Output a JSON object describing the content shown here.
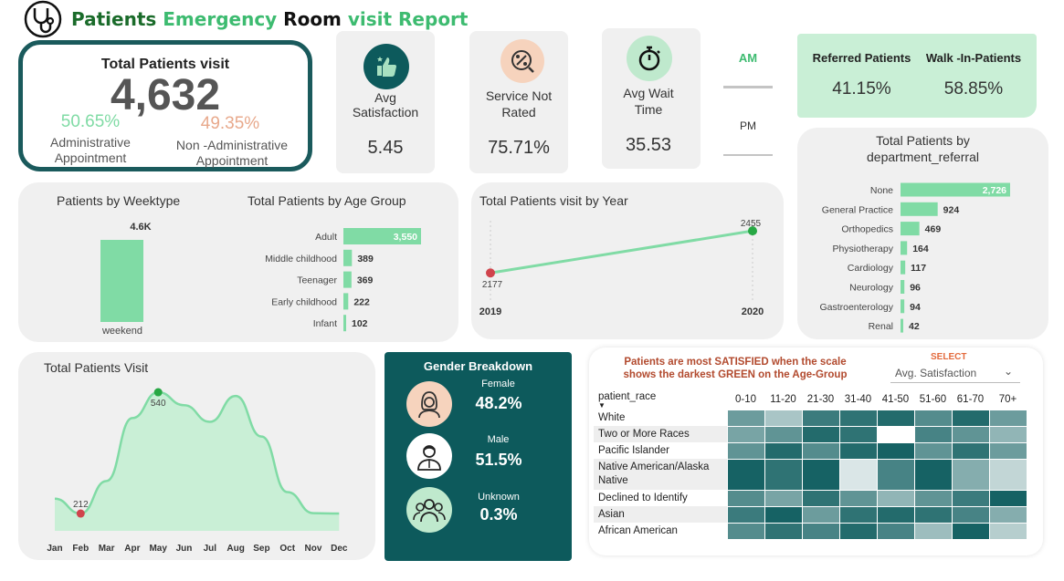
{
  "header": {
    "title_part1": "Patients ",
    "title_part2": "Emergency ",
    "title_part3": "Room ",
    "title_part4": "visit Report"
  },
  "total_visits": {
    "title": "Total Patients visit",
    "value": "4,632",
    "admin_pct": "50.65%",
    "admin_label_1": "Administrative",
    "admin_label_2": "Appointment",
    "non_admin_pct": "49.35%",
    "non_admin_label_1": "Non -Administrative",
    "non_admin_label_2": "Appointment"
  },
  "kpis": {
    "satisfaction": {
      "label_1": "Avg",
      "label_2": "Satisfaction",
      "value": "5.45",
      "icon": "thumbs-up-icon"
    },
    "not_rated": {
      "label_1": "Service Not",
      "label_2": "Rated",
      "value": "75.71%",
      "icon": "percent-badge-icon"
    },
    "wait_time": {
      "label_1": "Avg Wait",
      "label_2": "Time",
      "value": "35.53",
      "icon": "stopwatch-icon"
    }
  },
  "ampm": {
    "am": "AM",
    "pm": "PM"
  },
  "referral": {
    "referred_label": "Referred Patients",
    "referred_value": "41.15%",
    "walkin_label": "Walk -In-Patients",
    "walkin_value": "58.85%"
  },
  "weektype": {
    "title": "Patients by Weektype",
    "value_label": "4.6K",
    "category": "weekend"
  },
  "age_group": {
    "title": "Total Patients by Age Group"
  },
  "year_chart": {
    "title": "Total Patients visit by Year"
  },
  "dept_chart": {
    "title_1": "Total Patients by",
    "title_2": "department_referral"
  },
  "monthly": {
    "title": "Total Patients Visit",
    "max_label": "540",
    "min_label": "212"
  },
  "gender": {
    "title": "Gender Breakdown",
    "female_label": "Female",
    "female_value": "48.2%",
    "male_label": "Male",
    "male_value": "51.5%",
    "unknown_label": "Unknown",
    "unknown_value": "0.3%"
  },
  "heatmap": {
    "note_1": "Patients are most SATISFIED when the scale",
    "note_2": "shows the darkest GREEN on the Age-Group",
    "select_label": "SELECT",
    "select_value": "Avg. Satisfaction",
    "row_header": "patient_race",
    "columns": [
      "0-10",
      "11-20",
      "21-30",
      "31-40",
      "41-50",
      "51-60",
      "61-70",
      "70+"
    ],
    "rows": [
      {
        "race": "White",
        "levels": [
          0.6,
          0.35,
          0.8,
          0.85,
          0.9,
          0.7,
          0.9,
          0.6
        ]
      },
      {
        "race": "Two or More Races",
        "levels": [
          0.55,
          0.65,
          0.9,
          0.85,
          0.0,
          0.75,
          0.65,
          0.45
        ]
      },
      {
        "race": "Pacific Islander",
        "levels": [
          0.65,
          0.9,
          0.7,
          0.9,
          0.95,
          0.65,
          0.85,
          0.6
        ]
      },
      {
        "race": "Native American/Alaska Native",
        "levels": [
          0.95,
          0.85,
          0.95,
          0.15,
          0.75,
          0.95,
          0.5,
          0.25
        ]
      },
      {
        "race": "Declined to Identify",
        "levels": [
          0.7,
          0.55,
          0.85,
          0.65,
          0.45,
          0.65,
          0.8,
          0.95
        ]
      },
      {
        "race": "Asian",
        "levels": [
          0.8,
          0.95,
          0.6,
          0.85,
          0.9,
          0.85,
          0.75,
          0.5
        ]
      },
      {
        "race": "African American",
        "levels": [
          0.7,
          0.85,
          0.75,
          0.9,
          0.75,
          0.4,
          0.95,
          0.3
        ]
      }
    ]
  },
  "chart_data": [
    {
      "type": "bar",
      "title": "Patients by Weektype",
      "categories": [
        "weekend"
      ],
      "values": [
        4632
      ],
      "data_labels": [
        "4.6K"
      ]
    },
    {
      "type": "bar",
      "title": "Total Patients by Age Group",
      "orientation": "horizontal",
      "categories": [
        "Adult",
        "Middle childhood",
        "Teenager",
        "Early childhood",
        "Infant"
      ],
      "values": [
        3550,
        389,
        369,
        222,
        102
      ],
      "data_labels": [
        "3,550",
        "389",
        "369",
        "222",
        "102"
      ]
    },
    {
      "type": "line",
      "title": "Total Patients visit by Year",
      "x": [
        "2019",
        "2020"
      ],
      "y": [
        2177,
        2455
      ],
      "data_labels": [
        "2177",
        "2455"
      ]
    },
    {
      "type": "bar",
      "title": "Total Patients by department_referral",
      "orientation": "horizontal",
      "categories": [
        "None",
        "General Practice",
        "Orthopedics",
        "Physiotherapy",
        "Cardiology",
        "Neurology",
        "Gastroenterology",
        "Renal"
      ],
      "values": [
        2726,
        924,
        469,
        164,
        117,
        96,
        94,
        42
      ],
      "data_labels": [
        "2,726",
        "924",
        "469",
        "164",
        "117",
        "96",
        "94",
        "42"
      ]
    },
    {
      "type": "area",
      "title": "Total Patients Visit",
      "x": [
        "Jan",
        "Feb",
        "Mar",
        "Apr",
        "May",
        "Jun",
        "Jul",
        "Aug",
        "Sep",
        "Oct",
        "Nov",
        "Dec"
      ],
      "y": [
        252,
        212,
        300,
        470,
        540,
        505,
        460,
        530,
        420,
        270,
        213,
        212
      ],
      "labeled_points": {
        "max": "540",
        "min": "212"
      }
    }
  ],
  "colors": {
    "accent_green": "#80dba5",
    "mint_bg": "#c9efd6",
    "dark_teal": "#0d5a5c",
    "red_point": "#d0444c",
    "green_point": "#27a844"
  }
}
